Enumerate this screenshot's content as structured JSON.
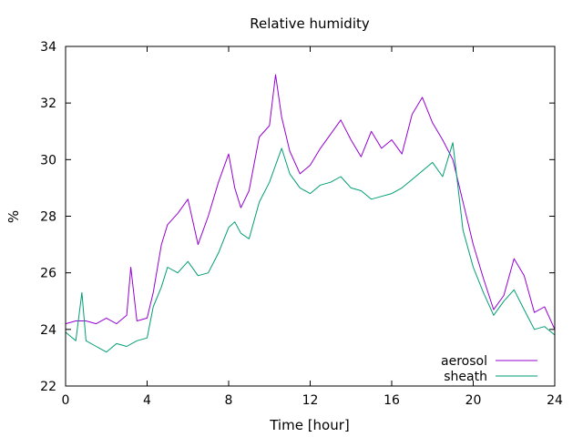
{
  "chart_data": {
    "type": "line",
    "title": "Relative humidity",
    "xlabel": "Time [hour]",
    "ylabel": "%",
    "xlim": [
      0,
      24
    ],
    "ylim": [
      22,
      34
    ],
    "xticks": [
      0,
      4,
      8,
      12,
      16,
      20,
      24
    ],
    "yticks": [
      22,
      24,
      26,
      28,
      30,
      32,
      34
    ],
    "grid": false,
    "legend_position": "bottom-right",
    "series": [
      {
        "name": "aerosol",
        "color": "#9400d3",
        "x": [
          0,
          0.5,
          1,
          1.5,
          2,
          2.5,
          3,
          3.2,
          3.5,
          4,
          4.3,
          4.7,
          5,
          5.5,
          6,
          6.5,
          7,
          7.5,
          8,
          8.3,
          8.6,
          9,
          9.5,
          10,
          10.3,
          10.6,
          11,
          11.5,
          12,
          12.5,
          13,
          13.5,
          14,
          14.5,
          15,
          15.5,
          16,
          16.5,
          17,
          17.5,
          18,
          18.5,
          19,
          19.5,
          20,
          20.5,
          21,
          21.5,
          22,
          22.5,
          23,
          23.5,
          24
        ],
        "values": [
          24.2,
          24.3,
          24.3,
          24.2,
          24.4,
          24.2,
          24.5,
          26.2,
          24.3,
          24.4,
          25.3,
          27.0,
          27.7,
          28.1,
          28.6,
          27.0,
          28.0,
          29.2,
          30.2,
          29.0,
          28.3,
          28.9,
          30.8,
          31.2,
          33.0,
          31.5,
          30.3,
          29.5,
          29.8,
          30.4,
          30.9,
          31.4,
          30.7,
          30.1,
          31.0,
          30.4,
          30.7,
          30.2,
          31.6,
          32.2,
          31.3,
          30.7,
          30.0,
          28.5,
          27.0,
          25.8,
          24.7,
          25.2,
          26.5,
          25.9,
          24.6,
          24.8,
          24.0
        ]
      },
      {
        "name": "sheath",
        "color": "#009e73",
        "x": [
          0,
          0.5,
          0.8,
          1,
          1.5,
          2,
          2.5,
          3,
          3.5,
          4,
          4.3,
          4.7,
          5,
          5.5,
          6,
          6.5,
          7,
          7.5,
          8,
          8.3,
          8.6,
          9,
          9.5,
          10,
          10.3,
          10.6,
          11,
          11.5,
          12,
          12.5,
          13,
          13.5,
          14,
          14.5,
          15,
          15.5,
          16,
          16.5,
          17,
          17.5,
          18,
          18.5,
          19,
          19.5,
          20,
          20.5,
          21,
          21.5,
          22,
          22.5,
          23,
          23.5,
          24
        ],
        "values": [
          23.9,
          23.6,
          25.3,
          23.6,
          23.4,
          23.2,
          23.5,
          23.4,
          23.6,
          23.7,
          24.8,
          25.5,
          26.2,
          26.0,
          26.4,
          25.9,
          26.0,
          26.7,
          27.6,
          27.8,
          27.4,
          27.2,
          28.5,
          29.2,
          29.8,
          30.4,
          29.5,
          29.0,
          28.8,
          29.1,
          29.2,
          29.4,
          29.0,
          28.9,
          28.6,
          28.7,
          28.8,
          29.0,
          29.3,
          29.6,
          29.9,
          29.4,
          30.6,
          27.5,
          26.2,
          25.3,
          24.5,
          25.0,
          25.4,
          24.7,
          24.0,
          24.1,
          23.8
        ]
      }
    ]
  }
}
